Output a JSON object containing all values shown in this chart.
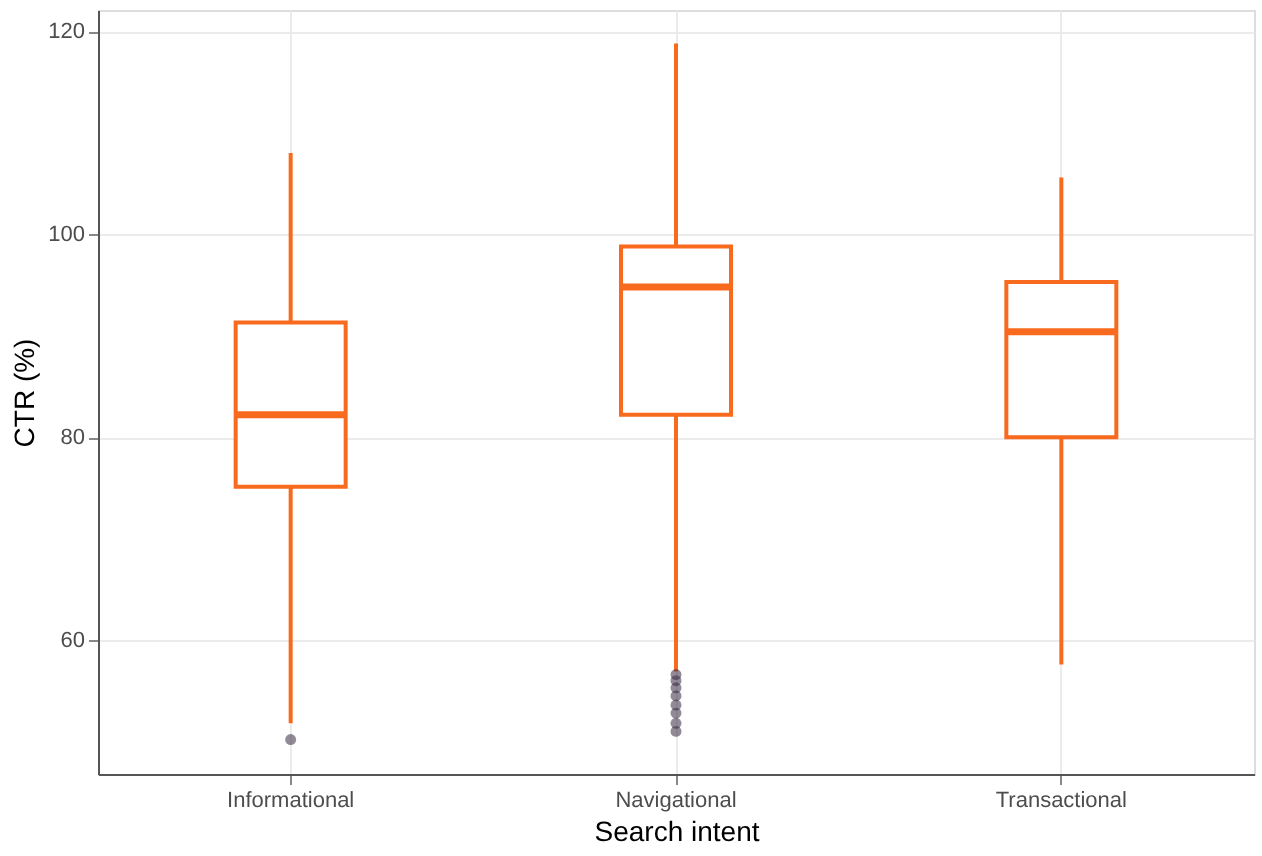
{
  "chart_data": {
    "type": "box",
    "xlabel": "Search intent",
    "ylabel": "CTR (%)",
    "categories": [
      "Informational",
      "Navigational",
      "Transactional"
    ],
    "series": [
      {
        "color": "#f86a1e",
        "boxes": [
          {
            "low": 51.8,
            "q1": 75.1,
            "median": 82.2,
            "q3": 91.3,
            "high": 108.0,
            "outliers": [
              50.2
            ]
          },
          {
            "low": 56.9,
            "q1": 82.2,
            "median": 94.8,
            "q3": 98.8,
            "high": 118.8,
            "outliers": [
              56.6,
              56.0,
              55.3,
              54.5,
              53.6,
              52.8,
              51.8,
              51.0
            ]
          },
          {
            "low": 57.6,
            "q1": 80.0,
            "median": 90.4,
            "q3": 95.3,
            "high": 105.6
          }
        ]
      }
    ],
    "ylim": [
      46.8,
      122.1
    ],
    "yticks": [
      60,
      80,
      100,
      120
    ],
    "grid": true
  }
}
